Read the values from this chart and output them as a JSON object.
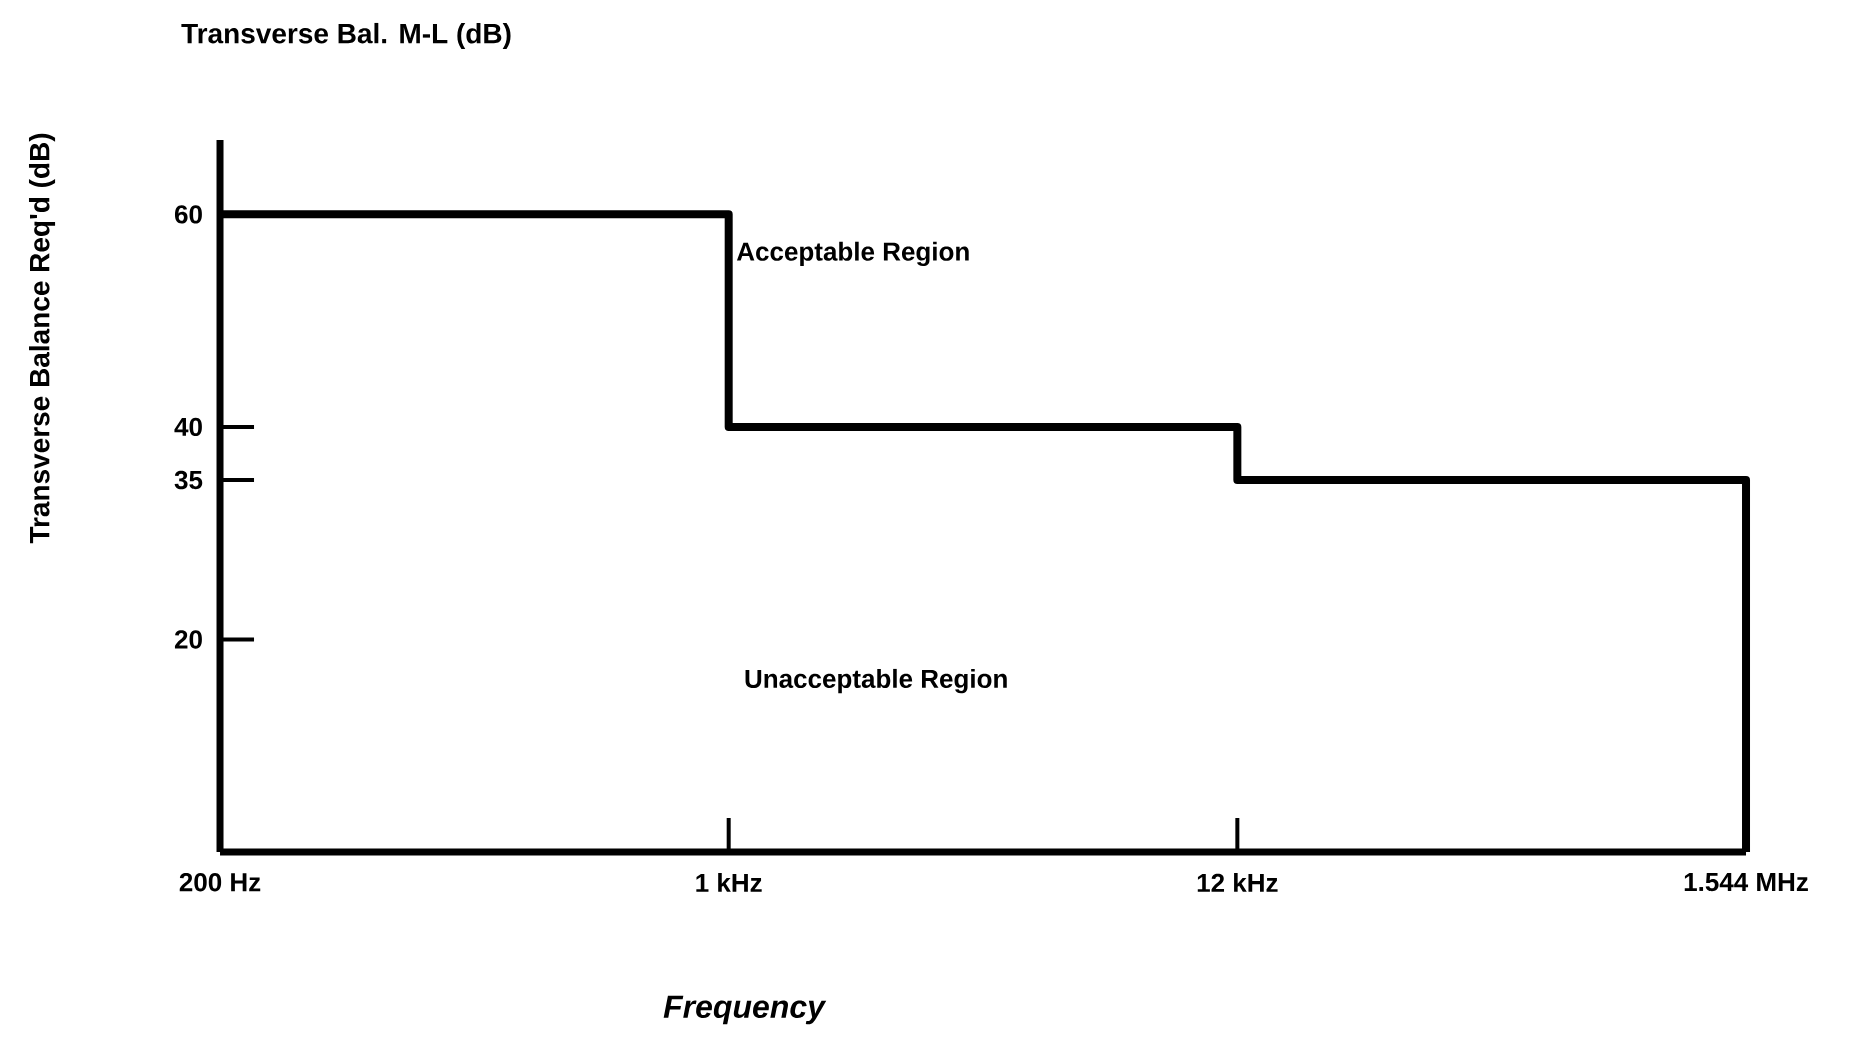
{
  "chart_data": {
    "type": "step",
    "title": "Transverse Bal. M-L (dB)",
    "ylabel": "Transverse Balance Req'd (dB)",
    "xlabel": "Frequency",
    "annotations": [
      "Acceptable Region",
      "Unacceptable Region"
    ],
    "categories": [
      "200 Hz",
      "1 kHz",
      "12 kHz",
      "1.544 MHz"
    ],
    "values": [
      60,
      40,
      35,
      0
    ],
    "color": "#000000",
    "ylim": [
      0,
      67
    ],
    "yticks": [
      20,
      35,
      40,
      60
    ]
  }
}
